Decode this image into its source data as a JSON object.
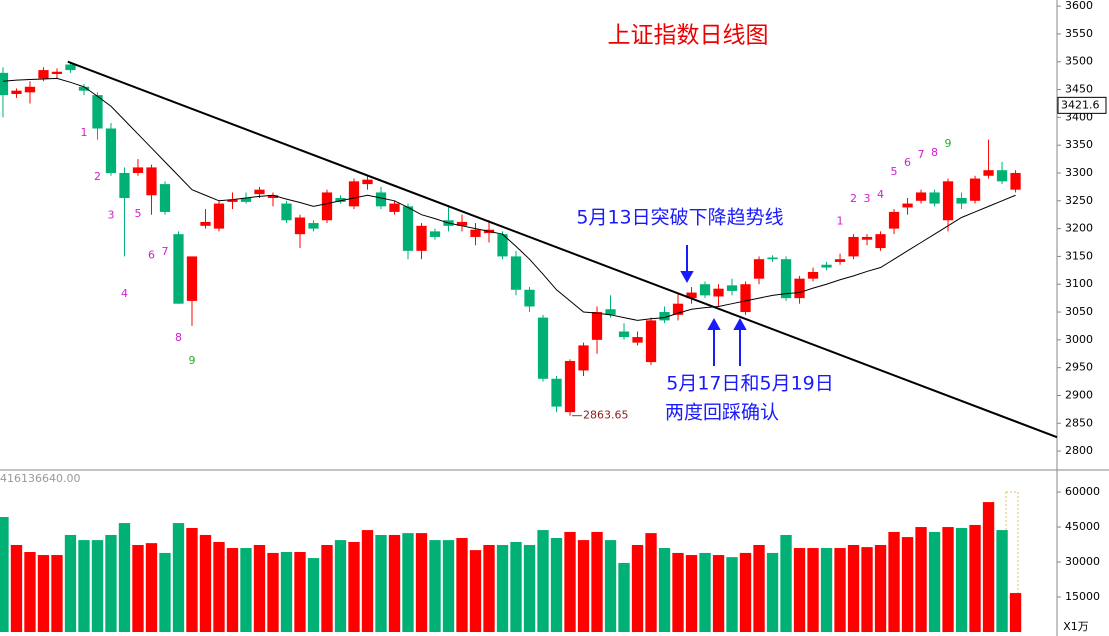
{
  "chart_data": [
    {
      "type": "candlestick",
      "title": "上证指数日线图",
      "xlim": [
        -0.22,
        78.07
      ],
      "ylim": [
        2766,
        3611
      ],
      "yticks": [
        2800,
        2850,
        2900,
        2950,
        3000,
        3050,
        3100,
        3150,
        3200,
        3250,
        3300,
        3350,
        3400,
        3450,
        3500,
        3550,
        3600
      ],
      "up_color": "#ff0000",
      "down_color": "#00b074",
      "open": [
        3480,
        3442,
        3445,
        3470,
        3478,
        3495,
        3455,
        3440,
        3380,
        3300,
        3300,
        3260,
        3280,
        3190,
        3070,
        3205,
        3200,
        3248,
        3255,
        3262,
        3255,
        3245,
        3190,
        3210,
        3215,
        3255,
        3240,
        3280,
        3265,
        3230,
        3240,
        3160,
        3195,
        3215,
        3205,
        3185,
        3192,
        3190,
        3150,
        3090,
        3040,
        2930,
        2870,
        2945,
        3000,
        3055,
        3015,
        2995,
        2960,
        3050,
        3045,
        3075,
        3100,
        3078,
        3098,
        3050,
        3110,
        3148,
        3145,
        3075,
        3110,
        3135,
        3140,
        3150,
        3180,
        3165,
        3200,
        3238,
        3250,
        3265,
        3215,
        3255,
        3250,
        3295,
        3305,
        3270
      ],
      "high": [
        3490,
        3452,
        3465,
        3490,
        3488,
        3500,
        3460,
        3445,
        3390,
        3310,
        3325,
        3315,
        3285,
        3195,
        3150,
        3235,
        3250,
        3265,
        3265,
        3275,
        3265,
        3250,
        3225,
        3215,
        3270,
        3260,
        3290,
        3295,
        3275,
        3250,
        3245,
        3210,
        3200,
        3240,
        3225,
        3210,
        3215,
        3195,
        3160,
        3095,
        3045,
        2935,
        2965,
        2995,
        3060,
        3080,
        3030,
        3015,
        3040,
        3060,
        3085,
        3095,
        3105,
        3100,
        3110,
        3105,
        3150,
        3152,
        3150,
        3115,
        3130,
        3140,
        3155,
        3190,
        3190,
        3195,
        3235,
        3255,
        3270,
        3270,
        3290,
        3265,
        3295,
        3360,
        3320,
        3305
      ],
      "low": [
        3400,
        3435,
        3425,
        3465,
        3470,
        3480,
        3440,
        3360,
        3295,
        3150,
        3295,
        3225,
        3225,
        3065,
        3025,
        3200,
        3195,
        3235,
        3245,
        3255,
        3240,
        3210,
        3165,
        3195,
        3210,
        3245,
        3235,
        3270,
        3235,
        3225,
        3145,
        3145,
        3180,
        3195,
        3195,
        3170,
        3175,
        3145,
        3080,
        3050,
        2925,
        2870,
        2863.65,
        2935,
        2975,
        3040,
        3000,
        2990,
        2955,
        3030,
        3035,
        3065,
        3075,
        3060,
        3080,
        3045,
        3100,
        3140,
        3070,
        3065,
        3105,
        3125,
        3135,
        3145,
        3170,
        3160,
        3190,
        3225,
        3245,
        3240,
        3195,
        3235,
        3245,
        3290,
        3280,
        3265
      ],
      "close": [
        3440,
        3448,
        3455,
        3485,
        3482,
        3485,
        3448,
        3380,
        3300,
        3255,
        3310,
        3310,
        3230,
        3065,
        3150,
        3212,
        3245,
        3252,
        3248,
        3270,
        3260,
        3215,
        3220,
        3200,
        3265,
        3248,
        3285,
        3288,
        3240,
        3245,
        3160,
        3205,
        3185,
        3205,
        3212,
        3198,
        3198,
        3150,
        3090,
        3060,
        2930,
        2880,
        2962,
        2990,
        3050,
        3045,
        3005,
        3005,
        3035,
        3035,
        3065,
        3085,
        3080,
        3092,
        3088,
        3100,
        3145,
        3145,
        3075,
        3110,
        3122,
        3130,
        3145,
        3185,
        3185,
        3190,
        3230,
        3245,
        3265,
        3245,
        3285,
        3245,
        3290,
        3305,
        3285,
        3300
      ],
      "ma": [
        3465,
        3467,
        3468,
        3469,
        3470,
        3463,
        3455,
        3438,
        3420,
        3395,
        3370,
        3345,
        3320,
        3295,
        3270,
        3260,
        3250,
        3252,
        3255,
        3258,
        3260,
        3253,
        3247,
        3240,
        3245,
        3250,
        3255,
        3260,
        3255,
        3250,
        3238,
        3225,
        3218,
        3210,
        3205,
        3200,
        3195,
        3190,
        3168,
        3145,
        3118,
        3090,
        3070,
        3050,
        3048,
        3045,
        3040,
        3035,
        3038,
        3040,
        3048,
        3055,
        3058,
        3060,
        3065,
        3070,
        3075,
        3080,
        3083,
        3085,
        3093,
        3100,
        3108,
        3115,
        3123,
        3130,
        3145,
        3160,
        3175,
        3190,
        3205,
        3220,
        3230,
        3240,
        3250,
        3260
      ],
      "last_price": 3421.6,
      "trendline": {
        "x": [
          4.8,
          78.07
        ],
        "y": [
          3500,
          2825
        ]
      },
      "td_labels": [
        {
          "n": 1,
          "index": 6,
          "price": 3372,
          "color": "#d020d0"
        },
        {
          "n": 2,
          "index": 7,
          "price": 3293,
          "color": "#d020d0"
        },
        {
          "n": 3,
          "index": 8,
          "price": 3224,
          "color": "#d020d0"
        },
        {
          "n": 4,
          "index": 9,
          "price": 3082,
          "color": "#d020d0"
        },
        {
          "n": 5,
          "index": 10,
          "price": 3226,
          "color": "#d020d0"
        },
        {
          "n": 6,
          "index": 11,
          "price": 3152,
          "color": "#d020d0"
        },
        {
          "n": 7,
          "index": 12,
          "price": 3158,
          "color": "#d020d0"
        },
        {
          "n": 8,
          "index": 13,
          "price": 3003,
          "color": "#d020d0"
        },
        {
          "n": 9,
          "index": 14,
          "price": 2962,
          "color": "#22b022"
        },
        {
          "n": 1,
          "index": 62,
          "price": 3213,
          "color": "#d020d0"
        },
        {
          "n": 2,
          "index": 63,
          "price": 3253,
          "color": "#d020d0"
        },
        {
          "n": 3,
          "index": 64,
          "price": 3253,
          "color": "#d020d0"
        },
        {
          "n": 4,
          "index": 65,
          "price": 3260,
          "color": "#d020d0"
        },
        {
          "n": 5,
          "index": 66,
          "price": 3302,
          "color": "#d020d0"
        },
        {
          "n": 6,
          "index": 67,
          "price": 3318,
          "color": "#d020d0"
        },
        {
          "n": 7,
          "index": 68,
          "price": 3332,
          "color": "#d020d0"
        },
        {
          "n": 8,
          "index": 69,
          "price": 3336,
          "color": "#d020d0"
        },
        {
          "n": 9,
          "index": 70,
          "price": 3352,
          "color": "#22b022"
        }
      ],
      "annotations": [
        "5月13日突破下降趋势线",
        "5月17日和5月19日",
        "两度回踩确认"
      ]
    },
    {
      "type": "bar",
      "info": "416136640.00",
      "unit": "X1万",
      "ylim": [
        0,
        68600
      ],
      "yticks": [
        15000,
        30000,
        45000,
        60000
      ],
      "values": [
        49300,
        37300,
        34300,
        33000,
        33000,
        41600,
        39400,
        39400,
        41600,
        46700,
        37300,
        38100,
        33900,
        46700,
        44600,
        41600,
        38600,
        36000,
        36000,
        37300,
        33900,
        34300,
        34300,
        31700,
        37300,
        39400,
        38600,
        43700,
        41600,
        41600,
        42400,
        42400,
        39400,
        39400,
        40300,
        35100,
        37300,
        37300,
        38600,
        37300,
        43700,
        40300,
        42900,
        39400,
        42900,
        39400,
        29600,
        37300,
        42400,
        36000,
        33900,
        33000,
        33900,
        33000,
        32100,
        33900,
        37300,
        33900,
        41600,
        36000,
        36000,
        36000,
        36000,
        37300,
        36400,
        37300,
        42900,
        40700,
        45000,
        42900,
        45000,
        44600,
        45900,
        55700,
        43700,
        16700
      ]
    }
  ]
}
